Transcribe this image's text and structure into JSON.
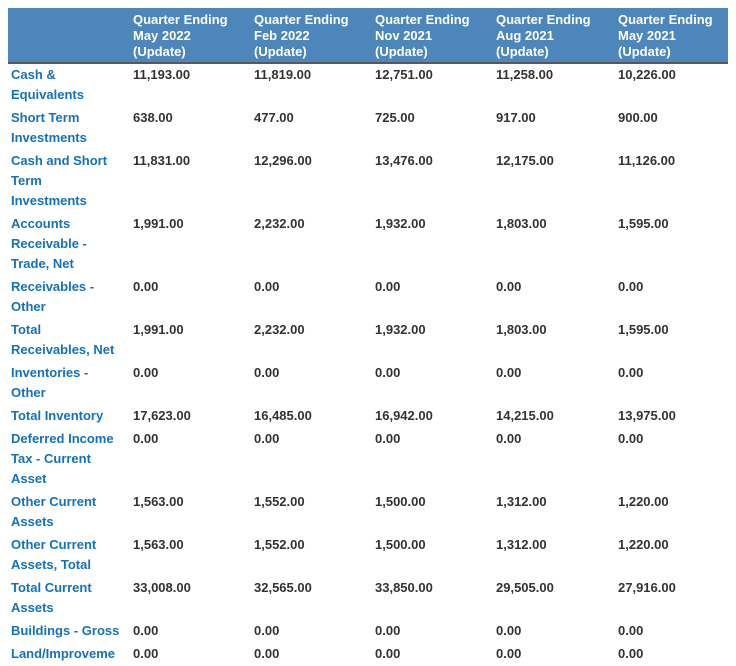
{
  "colors": {
    "header_bg": "#4d86bb",
    "header_text": "#ffffff",
    "label_text": "#1272be",
    "value_text": "#333333",
    "header_border": "#58595b",
    "page_bg": "#ffffff"
  },
  "table": {
    "corner_label": "",
    "columns": [
      {
        "label": "Quarter Ending\nMay 2022\n(Update)"
      },
      {
        "label": "Quarter Ending\nFeb 2022\n(Update)"
      },
      {
        "label": "Quarter Ending\nNov 2021\n(Update)"
      },
      {
        "label": "Quarter Ending\nAug 2021\n(Update)"
      },
      {
        "label": "Quarter Ending\nMay 2021\n(Update)"
      }
    ],
    "rows": [
      {
        "label": "Cash &\nEquivalents",
        "values": [
          "11,193.00",
          "11,819.00",
          "12,751.00",
          "11,258.00",
          "10,226.00"
        ]
      },
      {
        "label": "Short Term\nInvestments",
        "values": [
          "638.00",
          "477.00",
          "725.00",
          "917.00",
          "900.00"
        ]
      },
      {
        "label": "Cash and Short\nTerm\nInvestments",
        "values": [
          "11,831.00",
          "12,296.00",
          "13,476.00",
          "12,175.00",
          "11,126.00"
        ]
      },
      {
        "label": "Accounts\nReceivable -\nTrade, Net",
        "values": [
          "1,991.00",
          "2,232.00",
          "1,932.00",
          "1,803.00",
          "1,595.00"
        ]
      },
      {
        "label": "Receivables -\nOther",
        "values": [
          "0.00",
          "0.00",
          "0.00",
          "0.00",
          "0.00"
        ]
      },
      {
        "label": "Total\nReceivables, Net",
        "values": [
          "1,991.00",
          "2,232.00",
          "1,932.00",
          "1,803.00",
          "1,595.00"
        ]
      },
      {
        "label": "Inventories -\nOther",
        "values": [
          "0.00",
          "0.00",
          "0.00",
          "0.00",
          "0.00"
        ]
      },
      {
        "label": "Total Inventory",
        "values": [
          "17,623.00",
          "16,485.00",
          "16,942.00",
          "14,215.00",
          "13,975.00"
        ]
      },
      {
        "label": "Deferred Income\nTax - Current\nAsset",
        "values": [
          "0.00",
          "0.00",
          "0.00",
          "0.00",
          "0.00"
        ]
      },
      {
        "label": "Other Current\nAssets",
        "values": [
          "1,563.00",
          "1,552.00",
          "1,500.00",
          "1,312.00",
          "1,220.00"
        ]
      },
      {
        "label": "Other Current\nAssets, Total",
        "values": [
          "1,563.00",
          "1,552.00",
          "1,500.00",
          "1,312.00",
          "1,220.00"
        ]
      },
      {
        "label": "Total Current\nAssets",
        "values": [
          "33,008.00",
          "32,565.00",
          "33,850.00",
          "29,505.00",
          "27,916.00"
        ]
      },
      {
        "label": "Buildings - Gross",
        "values": [
          "0.00",
          "0.00",
          "0.00",
          "0.00",
          "0.00"
        ]
      },
      {
        "label": "Land/Improveme",
        "values": [
          "0.00",
          "0.00",
          "0.00",
          "0.00",
          "0.00"
        ]
      }
    ]
  }
}
